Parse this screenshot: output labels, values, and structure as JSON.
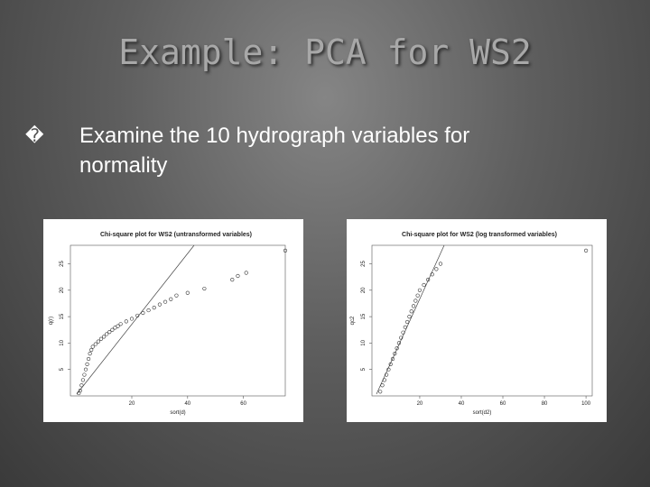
{
  "slide": {
    "title": "Example:  PCA for WS2",
    "bullets": [
      {
        "marker": "�",
        "text": "Examine the 10 hydrograph variables for normality"
      }
    ]
  },
  "chart_data": [
    {
      "type": "scatter",
      "title": "Chi-square plot for WS2 (untransformed variables)",
      "x_label": "sort(d)",
      "y_label": "q(r)",
      "x": [
        1,
        1.5,
        2,
        2.5,
        3,
        3.5,
        4,
        4.5,
        5,
        5.5,
        6,
        7,
        8,
        9,
        10,
        11,
        12,
        13,
        14,
        15,
        16,
        18,
        20,
        22,
        24,
        26,
        28,
        30,
        32,
        34,
        36,
        40,
        46,
        56,
        58,
        61,
        75
      ],
      "values": [
        0.5,
        1,
        2,
        3,
        4,
        5,
        6,
        7,
        8,
        8.7,
        9.3,
        9.8,
        10.3,
        10.8,
        11.2,
        11.7,
        12.1,
        12.5,
        12.9,
        13.2,
        13.6,
        14.1,
        14.6,
        15.2,
        15.7,
        16.2,
        16.7,
        17.3,
        17.8,
        18.3,
        19,
        19.5,
        20.3,
        22,
        22.7,
        23.3,
        27.5
      ],
      "xlim": [
        -2,
        75
      ],
      "ylim": [
        0,
        28.5
      ],
      "xticks": [
        20,
        40,
        60
      ],
      "yticks": [
        5,
        10,
        15,
        20,
        25
      ]
    },
    {
      "type": "scatter",
      "title": "Chi-square plot for WS2 (log transformed variables)",
      "x_label": "sort(d2)",
      "y_label": "qc2",
      "x": [
        1,
        2,
        3,
        4,
        5,
        6,
        7,
        8,
        9,
        10,
        11,
        12,
        13,
        14,
        15,
        16,
        17,
        18,
        19,
        20,
        22,
        24,
        26,
        28,
        30,
        100
      ],
      "values": [
        0.8,
        2,
        3,
        4,
        5,
        6,
        7,
        8,
        9,
        10,
        11,
        12,
        13,
        14,
        15,
        16,
        17,
        18,
        19,
        20,
        21,
        22,
        23,
        24,
        25,
        27.5
      ],
      "xlim": [
        -3,
        103
      ],
      "ylim": [
        0,
        28.5
      ],
      "xticks": [
        20,
        40,
        60,
        80,
        100
      ],
      "yticks": [
        5,
        10,
        15,
        20,
        25
      ]
    }
  ]
}
